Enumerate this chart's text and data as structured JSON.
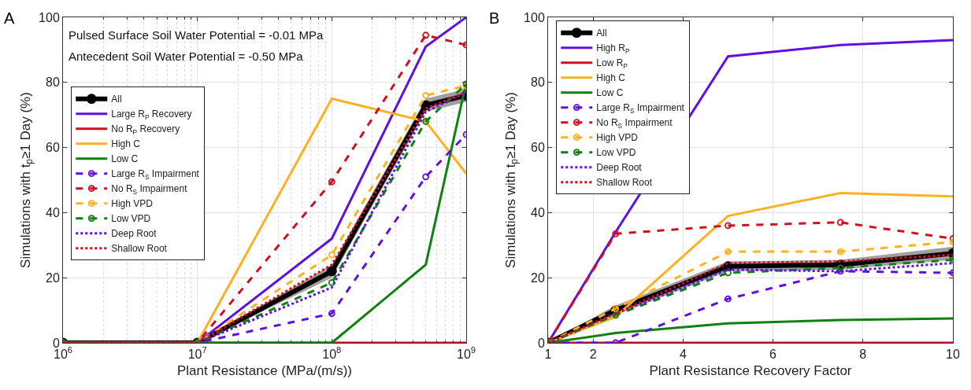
{
  "chart_data": [
    {
      "type": "line",
      "xlabel": "Plant Resistance (MPa/(m/s))",
      "ylabel": "Simulations with t$_{p}$≥1 Day (%)",
      "log": "x",
      "grid": true,
      "legend": "left",
      "x": [
        1000000,
        10000000,
        100000000,
        500000000,
        1000000000
      ],
      "xlim": [
        1000000,
        1000000000
      ],
      "xticks": [
        {
          "value": 1000000,
          "label": "10$^{6}$"
        },
        {
          "value": 10000000,
          "label": "10$^{7}$"
        },
        {
          "value": 100000000,
          "label": "10$^{8}$"
        },
        {
          "value": 1000000000,
          "label": "10$^{9}$"
        }
      ],
      "ylim": [
        0,
        100
      ],
      "yticks": [
        0,
        20,
        40,
        60,
        80,
        100
      ],
      "annotations": [
        "A",
        "Pulsed Surface Soil Water Potential = -0.01 MPa",
        "Antecedent Soil Water Potential = -0.50 MPa"
      ],
      "series": [
        {
          "name": "All",
          "color": "#000000",
          "line_style": "solid",
          "marker": "circle",
          "values": [
            0,
            0,
            22,
            73,
            76
          ],
          "lower": [
            0,
            0,
            20,
            71,
            74
          ],
          "upper": [
            0,
            0,
            24,
            75,
            78
          ]
        },
        {
          "name": "Large R$_{P}$ Recovery",
          "color": "#6010e0",
          "line_style": "solid",
          "marker": "none",
          "values": [
            0,
            0,
            32,
            91,
            100
          ]
        },
        {
          "name": "No R$_{P}$ Recovery",
          "color": "#d01020",
          "line_style": "solid",
          "marker": "none",
          "values": [
            0,
            0,
            0,
            0,
            0
          ]
        },
        {
          "name": "High C",
          "color": "#ffb020",
          "line_style": "solid",
          "marker": "none",
          "values": [
            0,
            0,
            75,
            68,
            52
          ]
        },
        {
          "name": "Low C",
          "color": "#108010",
          "line_style": "solid",
          "marker": "none",
          "values": [
            0,
            0,
            0,
            24,
            80
          ]
        },
        {
          "name": "Large R$_{S}$ Impairment",
          "color": "#6010e0",
          "line_style": "dashed",
          "marker": "circle",
          "values": [
            0,
            0,
            9,
            51,
            64
          ]
        },
        {
          "name": "No R$_{S}$ Impairment",
          "color": "#d01020",
          "line_style": "dashed",
          "marker": "circle",
          "values": [
            0,
            0,
            49.5,
            94.5,
            91.5
          ]
        },
        {
          "name": "High VPD",
          "color": "#ffb020",
          "line_style": "dashed",
          "marker": "circle",
          "values": [
            0,
            0,
            27,
            76,
            79
          ]
        },
        {
          "name": "Low VPD",
          "color": "#108010",
          "line_style": "dashed",
          "marker": "circle",
          "values": [
            0,
            0,
            18.5,
            68,
            79.5
          ]
        },
        {
          "name": "Deep Root",
          "color": "#6010e0",
          "line_style": "dotted",
          "marker": "none",
          "values": [
            0,
            0,
            17,
            71,
            77
          ]
        },
        {
          "name": "Shallow Root",
          "color": "#d01020",
          "line_style": "dotted",
          "marker": "none",
          "values": [
            0,
            0,
            24,
            72,
            77
          ]
        }
      ]
    },
    {
      "type": "line",
      "xlabel": "Plant Resistance Recovery Factor",
      "ylabel": "Simulations with t$_{p}$≥1 Day (%)",
      "grid": true,
      "legend": "top left",
      "x": [
        1,
        2.5,
        5,
        7.5,
        10
      ],
      "xlim": [
        1,
        10
      ],
      "xticks": [
        1,
        2,
        4,
        6,
        8,
        10
      ],
      "ylim": [
        0,
        100
      ],
      "yticks": [
        0,
        20,
        40,
        60,
        80,
        100
      ],
      "annotations": [
        "B"
      ],
      "series": [
        {
          "name": "All",
          "color": "#000000",
          "line_style": "solid",
          "marker": "circle",
          "values": [
            0,
            10,
            23.5,
            24,
            27.5
          ],
          "lower": [
            0,
            8.5,
            22,
            22.5,
            25.5
          ],
          "upper": [
            0,
            11.5,
            25,
            25.5,
            29.5
          ]
        },
        {
          "name": "High R$_{P}$",
          "color": "#6010e0",
          "line_style": "solid",
          "marker": "none",
          "values": [
            0,
            34,
            88,
            91.5,
            93
          ]
        },
        {
          "name": "Low R$_{P}$",
          "color": "#d01020",
          "line_style": "solid",
          "marker": "none",
          "values": [
            0,
            0,
            0,
            0,
            0
          ]
        },
        {
          "name": "High C",
          "color": "#ffb020",
          "line_style": "solid",
          "marker": "none",
          "values": [
            0,
            8,
            39,
            46,
            45
          ]
        },
        {
          "name": "Low C",
          "color": "#108010",
          "line_style": "solid",
          "marker": "none",
          "values": [
            0,
            3,
            6,
            7,
            7.5
          ]
        },
        {
          "name": "Large R$_{S}$ Impairment",
          "color": "#6010e0",
          "line_style": "dashed",
          "marker": "circle",
          "values": [
            0,
            0,
            13.5,
            22,
            21.5
          ]
        },
        {
          "name": "No R$_{S}$ Impairment",
          "color": "#d01020",
          "line_style": "dashed",
          "marker": "circle",
          "values": [
            0,
            33.5,
            36,
            37,
            32
          ]
        },
        {
          "name": "High VPD",
          "color": "#ffb020",
          "line_style": "dashed",
          "marker": "circle",
          "values": [
            0,
            10.5,
            28,
            28,
            31
          ]
        },
        {
          "name": "Low VPD",
          "color": "#108010",
          "line_style": "dashed",
          "marker": "circle",
          "values": [
            0,
            8.5,
            21.5,
            23,
            25.5
          ]
        },
        {
          "name": "Deep Root",
          "color": "#6010e0",
          "line_style": "dotted",
          "marker": "none",
          "values": [
            0,
            9,
            22.5,
            22,
            24.5
          ]
        },
        {
          "name": "Shallow Root",
          "color": "#d01020",
          "line_style": "dotted",
          "marker": "none",
          "values": [
            0,
            9,
            24.5,
            25,
            27
          ]
        }
      ]
    }
  ]
}
